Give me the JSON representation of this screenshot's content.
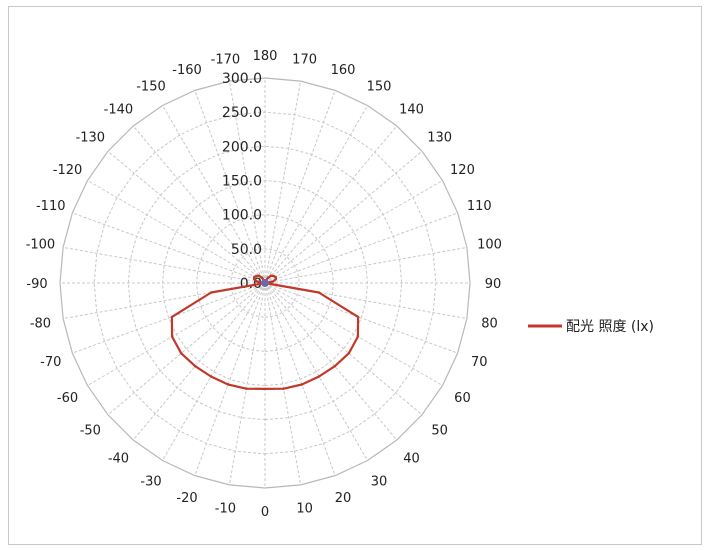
{
  "chart_data": {
    "type": "polar-line",
    "angle_ticks": [
      180,
      170,
      160,
      150,
      140,
      130,
      120,
      110,
      100,
      90,
      80,
      70,
      60,
      50,
      40,
      30,
      20,
      10,
      0,
      -10,
      -20,
      -30,
      -40,
      -50,
      -60,
      -70,
      -80,
      -90,
      -100,
      -110,
      -120,
      -130,
      -140,
      -150,
      -160,
      -170
    ],
    "radial_ticks": [
      "0.0",
      "50.0",
      "100.0",
      "150.0",
      "200.0",
      "250.0",
      "300.0"
    ],
    "rlim": [
      0,
      300
    ],
    "grid": true,
    "legend_position": "right",
    "series": [
      {
        "name": "配光 照度 (lx)",
        "color": "#c0392b",
        "angles": [
          0,
          10,
          20,
          30,
          40,
          50,
          60,
          70,
          80,
          90,
          100,
          110,
          120,
          130,
          140,
          150,
          160,
          170,
          180,
          -170,
          -160,
          -150,
          -140,
          -130,
          -120,
          -110,
          -100,
          -90,
          -80,
          -70,
          -60,
          -50,
          -40,
          -30,
          -20,
          -10
        ],
        "values": [
          155,
          157,
          158,
          158,
          159,
          160,
          157,
          145,
          80,
          0,
          12,
          17,
          18,
          16,
          14,
          9,
          4,
          1,
          0,
          1,
          4,
          9,
          14,
          16,
          18,
          17,
          12,
          0,
          80,
          145,
          157,
          160,
          159,
          158,
          158,
          157
        ]
      }
    ]
  }
}
